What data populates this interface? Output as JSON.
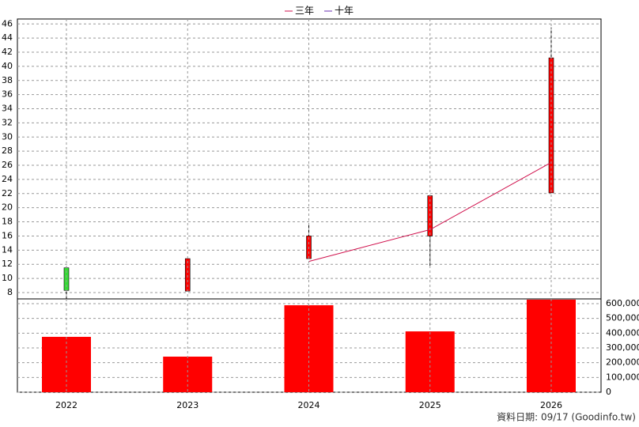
{
  "chart_data": [
    {
      "type": "candlestick",
      "open": [
        11.5,
        8.2,
        12.8,
        16.0,
        22.1
      ],
      "high": [
        11.5,
        12.8,
        17.5,
        21.7,
        45.5
      ],
      "low": [
        7.1,
        8.2,
        12.8,
        11.8,
        22.1
      ],
      "close": [
        8.3,
        12.8,
        16.0,
        21.7,
        41.2
      ],
      "up_color": "#ff0000",
      "down_color": "#33dd33",
      "series": [
        {
          "name": "三年",
          "color": "#d0104c",
          "values": [
            null,
            null,
            12.4,
            16.9,
            26.4
          ]
        },
        {
          "name": "十年",
          "color": "#6a2fb0",
          "values": [
            null,
            null,
            null,
            null,
            null
          ]
        }
      ],
      "ylim": [
        7.1,
        46.7
      ],
      "yticks": [
        8,
        10,
        12,
        14,
        16,
        18,
        20,
        22,
        24,
        26,
        28,
        30,
        32,
        34,
        36,
        38,
        40,
        42,
        44,
        46
      ],
      "grid": true,
      "legend": "top"
    },
    {
      "type": "bar",
      "categories": [
        "2022",
        "2023",
        "2024",
        "2025",
        "2026"
      ],
      "values": [
        375000,
        241000,
        589000,
        412000,
        627000
      ],
      "color": "#ff0000",
      "ylim": [
        0,
        632000
      ],
      "yticks": [
        0,
        {
          "value": 100000,
          "label": "100,000"
        },
        {
          "value": 200000,
          "label": "200,000"
        },
        {
          "value": 300000,
          "label": "300,000"
        },
        {
          "value": 400000,
          "label": "400,000"
        },
        {
          "value": 500000,
          "label": "500,000"
        },
        {
          "value": 600000,
          "label": "600,000"
        }
      ],
      "grid": true
    }
  ],
  "footer": "資料日期: 09/17  (Goodinfo.tw)"
}
